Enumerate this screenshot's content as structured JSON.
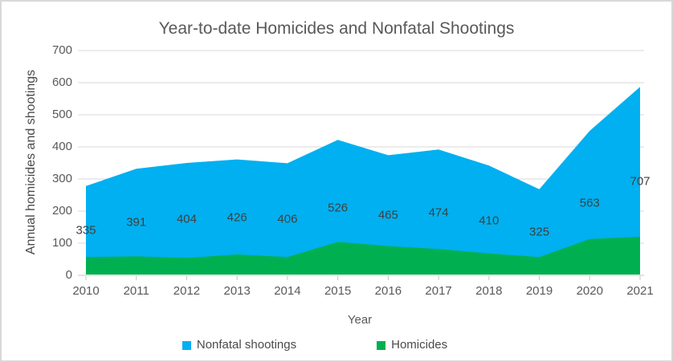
{
  "chart_data": {
    "type": "area",
    "title": "Year-to-date Homicides and Nonfatal Shootings",
    "xlabel": "Year",
    "ylabel": "Annual homicides and shootings",
    "categories": [
      "2010",
      "2011",
      "2012",
      "2013",
      "2014",
      "2015",
      "2016",
      "2017",
      "2018",
      "2019",
      "2020",
      "2021"
    ],
    "ylim": [
      0,
      700
    ],
    "yticks": [
      0,
      100,
      200,
      300,
      400,
      500,
      600,
      700
    ],
    "grid": true,
    "legend_position": "bottom",
    "series": [
      {
        "name": "Nonfatal shootings",
        "color": "#00B0F0",
        "data_labels": [
          "335",
          "391",
          "404",
          "426",
          "406",
          "526",
          "465",
          "474",
          "410",
          "325",
          "563",
          "707"
        ],
        "area_top_values": [
          278,
          332,
          350,
          361,
          349,
          422,
          374,
          392,
          342,
          268,
          450,
          587
        ]
      },
      {
        "name": "Homicides",
        "color": "#00B050",
        "values": [
          57,
          59,
          54,
          65,
          57,
          104,
          91,
          82,
          68,
          57,
          113,
          120
        ]
      }
    ],
    "colors": {
      "grid": "#D9D9D9",
      "axis": "#C6C6C6",
      "title_text": "#595959",
      "tick_text": "#595959",
      "label_text": "#404040",
      "background": "#FFFFFF",
      "frame_border": "#D8D8D8"
    }
  }
}
